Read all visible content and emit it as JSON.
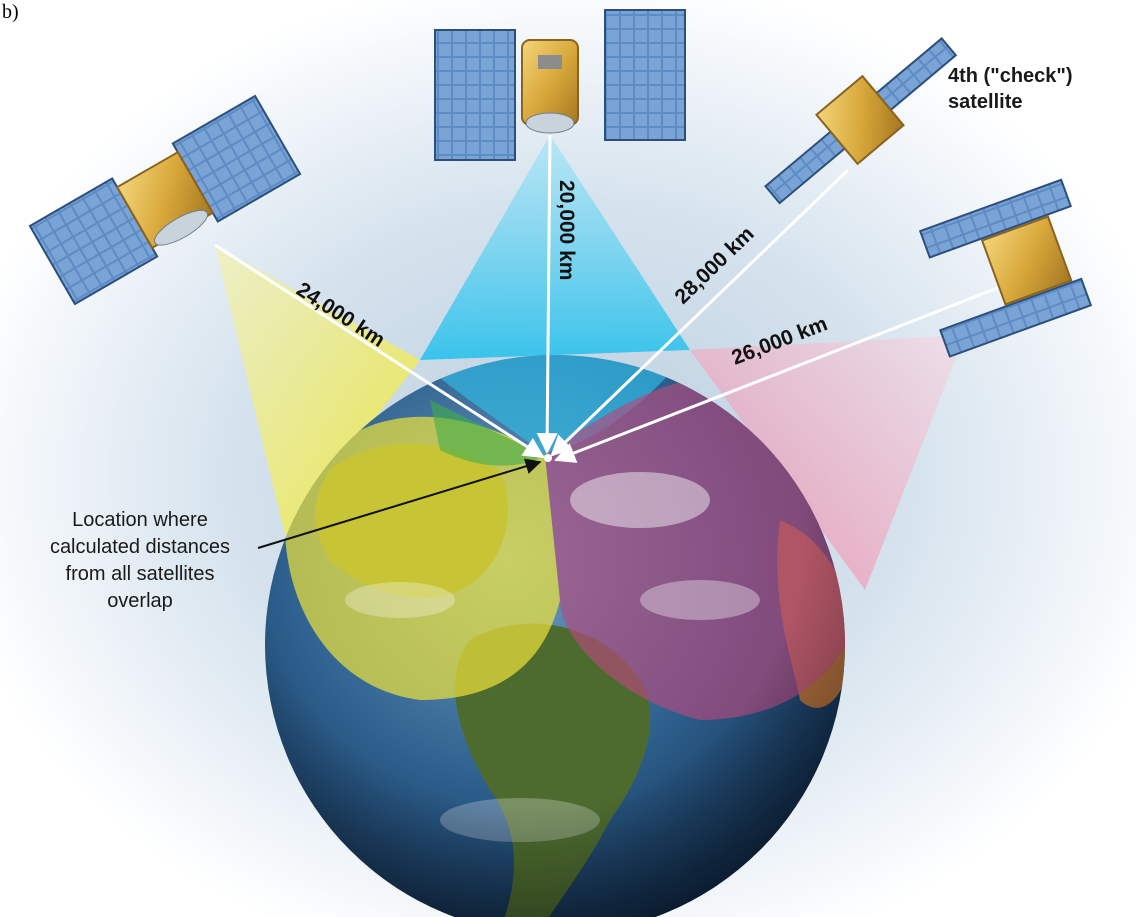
{
  "figure_label": "b)",
  "distances": {
    "sat1": "24,000 km",
    "sat2": "20,000 km",
    "sat3": "28,000 km",
    "sat4": "26,000 km"
  },
  "check_satellite_label": [
    "4th (\"check\")",
    "satellite"
  ],
  "location_label": [
    "Location where",
    "calculated distances",
    "from all satellites",
    "overlap"
  ],
  "colors": {
    "background": "#c9d9e6",
    "cone_yellow": "#f2ec3c",
    "cone_cyan": "#32c7ef",
    "cone_pink": "#f3a0b7",
    "panel_blue": "#4f7fb8",
    "satellite_gold": "#d9a93c",
    "ocean": "#1f4d7a",
    "land_green": "#4d6b2f"
  }
}
